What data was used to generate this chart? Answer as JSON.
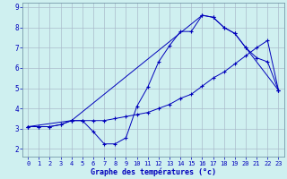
{
  "xlabel": "Graphe des températures (°c)",
  "xlim": [
    -0.5,
    23.5
  ],
  "ylim": [
    1.6,
    9.2
  ],
  "xticks": [
    0,
    1,
    2,
    3,
    4,
    5,
    6,
    7,
    8,
    9,
    10,
    11,
    12,
    13,
    14,
    15,
    16,
    17,
    18,
    19,
    20,
    21,
    22,
    23
  ],
  "yticks": [
    2,
    3,
    4,
    5,
    6,
    7,
    8,
    9
  ],
  "bg_color": "#cff0f0",
  "grid_color": "#aabbcc",
  "line_color": "#0000bb",
  "line1_x": [
    0,
    1,
    2,
    3,
    4,
    5,
    6,
    7,
    8,
    9,
    10,
    11,
    12,
    13,
    14,
    15,
    16,
    17,
    18,
    19,
    20,
    21,
    22,
    23
  ],
  "line1_y": [
    3.1,
    3.1,
    3.1,
    3.2,
    3.4,
    3.4,
    2.85,
    2.25,
    2.25,
    2.55,
    4.1,
    5.05,
    6.3,
    7.1,
    7.8,
    7.8,
    8.6,
    8.5,
    8.0,
    7.7,
    7.0,
    6.5,
    6.3,
    4.9
  ],
  "line2_x": [
    0,
    1,
    2,
    3,
    4,
    5,
    6,
    7,
    8,
    9,
    10,
    11,
    12,
    13,
    14,
    15,
    16,
    17,
    18,
    19,
    20,
    21,
    22,
    23
  ],
  "line2_y": [
    3.1,
    3.1,
    3.1,
    3.2,
    3.4,
    3.4,
    3.4,
    3.4,
    3.5,
    3.6,
    3.7,
    3.8,
    4.0,
    4.2,
    4.5,
    4.7,
    5.1,
    5.5,
    5.8,
    6.2,
    6.6,
    7.0,
    7.35,
    4.9
  ],
  "line3_x": [
    0,
    4,
    16,
    17,
    18,
    19,
    20,
    23
  ],
  "line3_y": [
    3.1,
    3.4,
    8.6,
    8.5,
    8.0,
    7.7,
    7.0,
    4.9
  ]
}
